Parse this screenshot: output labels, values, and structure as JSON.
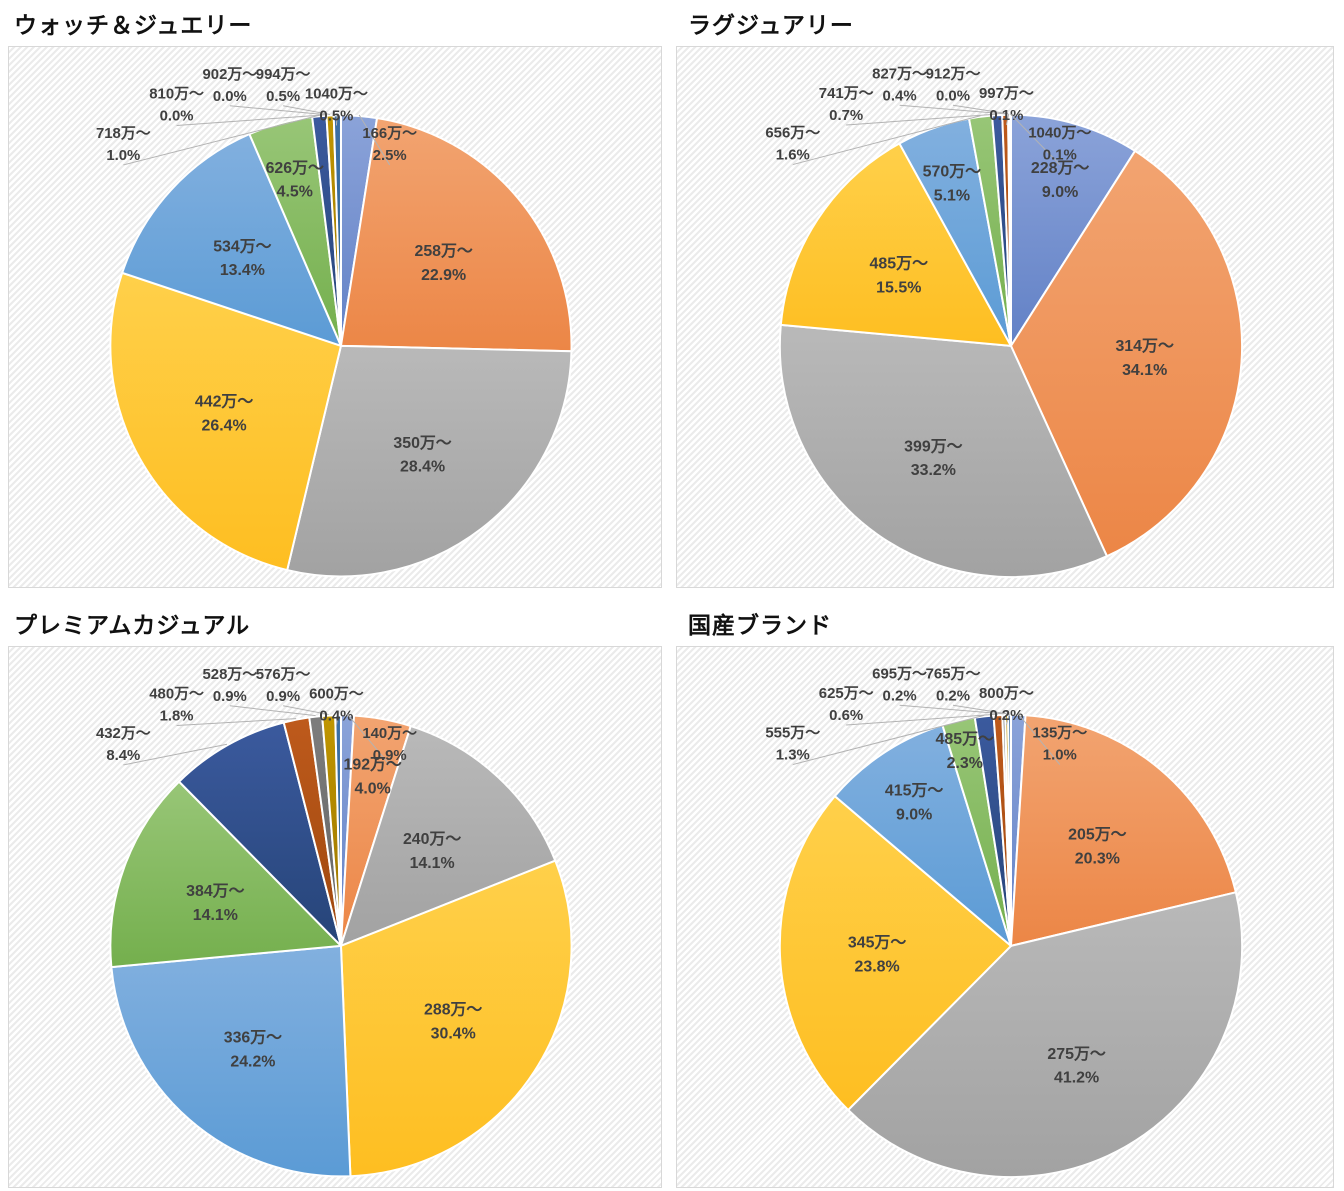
{
  "page": {
    "background": "#ffffff",
    "label_color": "#404040",
    "title_color": "#111111",
    "leader_line_color": "#b3b3b3",
    "slice_border_color": "#ffffff"
  },
  "palette": {
    "blue": [
      "#8BA3D9",
      "#6281C6"
    ],
    "orange": [
      "#F2A471",
      "#EC8646"
    ],
    "gray": [
      "#B9B9B9",
      "#A2A2A2"
    ],
    "yellow": [
      "#FFD04A",
      "#FEBE21"
    ],
    "lightblue": [
      "#82B0DF",
      "#5B9BD5"
    ],
    "green": [
      "#98C677",
      "#74AF4D"
    ],
    "navy": [
      "#3B5A9E",
      "#264478"
    ],
    "darkorange": [
      "#BE5A1C",
      "#9E480E"
    ],
    "darkgray": [
      "#7D7D7D",
      "#636363"
    ],
    "gold": [
      "#C09600",
      "#997300"
    ],
    "steelblue": [
      "#3C6FA5",
      "#28618F"
    ]
  },
  "chart_data": [
    {
      "type": "pie",
      "title": "ウォッチ＆ジュエリー",
      "legend": "none",
      "start_angle_deg": 0,
      "direction": "clockwise",
      "slices": [
        {
          "label": "166万〜",
          "pct": 2.5,
          "pct_label": "2.5%",
          "color": "blue",
          "placement": "outside"
        },
        {
          "label": "258万〜",
          "pct": 22.9,
          "pct_label": "22.9%",
          "color": "orange",
          "placement": "inside"
        },
        {
          "label": "350万〜",
          "pct": 28.4,
          "pct_label": "28.4%",
          "color": "gray",
          "placement": "inside"
        },
        {
          "label": "442万〜",
          "pct": 26.4,
          "pct_label": "26.4%",
          "color": "yellow",
          "placement": "inside"
        },
        {
          "label": "534万〜",
          "pct": 13.4,
          "pct_label": "13.4%",
          "color": "lightblue",
          "placement": "inside"
        },
        {
          "label": "626万〜",
          "pct": 4.5,
          "pct_label": "4.5%",
          "color": "green",
          "placement": "inside"
        },
        {
          "label": "718万〜",
          "pct": 1.0,
          "pct_label": "1.0%",
          "color": "navy",
          "placement": "outside"
        },
        {
          "label": "810万〜",
          "pct": 0.0,
          "pct_label": "0.0%",
          "color": "darkorange",
          "placement": "outside"
        },
        {
          "label": "902万〜",
          "pct": 0.0,
          "pct_label": "0.0%",
          "color": "darkgray",
          "placement": "outside"
        },
        {
          "label": "994万〜",
          "pct": 0.5,
          "pct_label": "0.5%",
          "color": "gold",
          "placement": "outside"
        },
        {
          "label": "1040万〜",
          "pct": 0.5,
          "pct_label": "0.5%",
          "color": "steelblue",
          "placement": "outside"
        }
      ]
    },
    {
      "type": "pie",
      "title": "ラグジュアリー",
      "legend": "none",
      "start_angle_deg": 0,
      "direction": "clockwise",
      "slices": [
        {
          "label": "228万〜",
          "pct": 9.0,
          "pct_label": "9.0%",
          "color": "blue",
          "placement": "inside"
        },
        {
          "label": "314万〜",
          "pct": 34.1,
          "pct_label": "34.1%",
          "color": "orange",
          "placement": "inside"
        },
        {
          "label": "399万〜",
          "pct": 33.2,
          "pct_label": "33.2%",
          "color": "gray",
          "placement": "inside"
        },
        {
          "label": "485万〜",
          "pct": 15.5,
          "pct_label": "15.5%",
          "color": "yellow",
          "placement": "inside"
        },
        {
          "label": "570万〜",
          "pct": 5.1,
          "pct_label": "5.1%",
          "color": "lightblue",
          "placement": "inside"
        },
        {
          "label": "656万〜",
          "pct": 1.6,
          "pct_label": "1.6%",
          "color": "green",
          "placement": "outside"
        },
        {
          "label": "741万〜",
          "pct": 0.7,
          "pct_label": "0.7%",
          "color": "navy",
          "placement": "outside"
        },
        {
          "label": "827万〜",
          "pct": 0.4,
          "pct_label": "0.4%",
          "color": "darkorange",
          "placement": "outside"
        },
        {
          "label": "912万〜",
          "pct": 0.0,
          "pct_label": "0.0%",
          "color": "darkgray",
          "placement": "outside"
        },
        {
          "label": "997万〜",
          "pct": 0.1,
          "pct_label": "0.1%",
          "color": "gold",
          "placement": "outside"
        },
        {
          "label": "1040万〜",
          "pct": 0.1,
          "pct_label": "0.1%",
          "color": "steelblue",
          "placement": "outside"
        }
      ]
    },
    {
      "type": "pie",
      "title": "プレミアムカジュアル",
      "legend": "none",
      "start_angle_deg": 0,
      "direction": "clockwise",
      "slices": [
        {
          "label": "140万〜",
          "pct": 0.9,
          "pct_label": "0.9%",
          "color": "blue",
          "placement": "outside"
        },
        {
          "label": "192万〜",
          "pct": 4.0,
          "pct_label": "4.0%",
          "color": "orange",
          "placement": "inside"
        },
        {
          "label": "240万〜",
          "pct": 14.1,
          "pct_label": "14.1%",
          "color": "gray",
          "placement": "inside"
        },
        {
          "label": "288万〜",
          "pct": 30.4,
          "pct_label": "30.4%",
          "color": "yellow",
          "placement": "inside"
        },
        {
          "label": "336万〜",
          "pct": 24.2,
          "pct_label": "24.2%",
          "color": "lightblue",
          "placement": "inside"
        },
        {
          "label": "384万〜",
          "pct": 14.1,
          "pct_label": "14.1%",
          "color": "green",
          "placement": "inside"
        },
        {
          "label": "432万〜",
          "pct": 8.4,
          "pct_label": "8.4%",
          "color": "navy",
          "placement": "outside"
        },
        {
          "label": "480万〜",
          "pct": 1.8,
          "pct_label": "1.8%",
          "color": "darkorange",
          "placement": "outside"
        },
        {
          "label": "528万〜",
          "pct": 0.9,
          "pct_label": "0.9%",
          "color": "darkgray",
          "placement": "outside"
        },
        {
          "label": "576万〜",
          "pct": 0.9,
          "pct_label": "0.9%",
          "color": "gold",
          "placement": "outside"
        },
        {
          "label": "600万〜",
          "pct": 0.4,
          "pct_label": "0.4%",
          "color": "steelblue",
          "placement": "outside"
        }
      ]
    },
    {
      "type": "pie",
      "title": "国産ブランド",
      "legend": "none",
      "start_angle_deg": 0,
      "direction": "clockwise",
      "slices": [
        {
          "label": "135万〜",
          "pct": 1.0,
          "pct_label": "1.0%",
          "color": "blue",
          "placement": "outside"
        },
        {
          "label": "205万〜",
          "pct": 20.3,
          "pct_label": "20.3%",
          "color": "orange",
          "placement": "inside"
        },
        {
          "label": "275万〜",
          "pct": 41.2,
          "pct_label": "41.2%",
          "color": "gray",
          "placement": "inside"
        },
        {
          "label": "345万〜",
          "pct": 23.8,
          "pct_label": "23.8%",
          "color": "yellow",
          "placement": "inside"
        },
        {
          "label": "415万〜",
          "pct": 9.0,
          "pct_label": "9.0%",
          "color": "lightblue",
          "placement": "inside"
        },
        {
          "label": "485万〜",
          "pct": 2.3,
          "pct_label": "2.3%",
          "color": "green",
          "placement": "inside"
        },
        {
          "label": "555万〜",
          "pct": 1.3,
          "pct_label": "1.3%",
          "color": "navy",
          "placement": "outside"
        },
        {
          "label": "625万〜",
          "pct": 0.6,
          "pct_label": "0.6%",
          "color": "darkorange",
          "placement": "outside"
        },
        {
          "label": "695万〜",
          "pct": 0.2,
          "pct_label": "0.2%",
          "color": "darkgray",
          "placement": "outside"
        },
        {
          "label": "765万〜",
          "pct": 0.2,
          "pct_label": "0.2%",
          "color": "gold",
          "placement": "outside"
        },
        {
          "label": "800万〜",
          "pct": 0.2,
          "pct_label": "0.2%",
          "color": "steelblue",
          "placement": "outside"
        }
      ]
    }
  ]
}
